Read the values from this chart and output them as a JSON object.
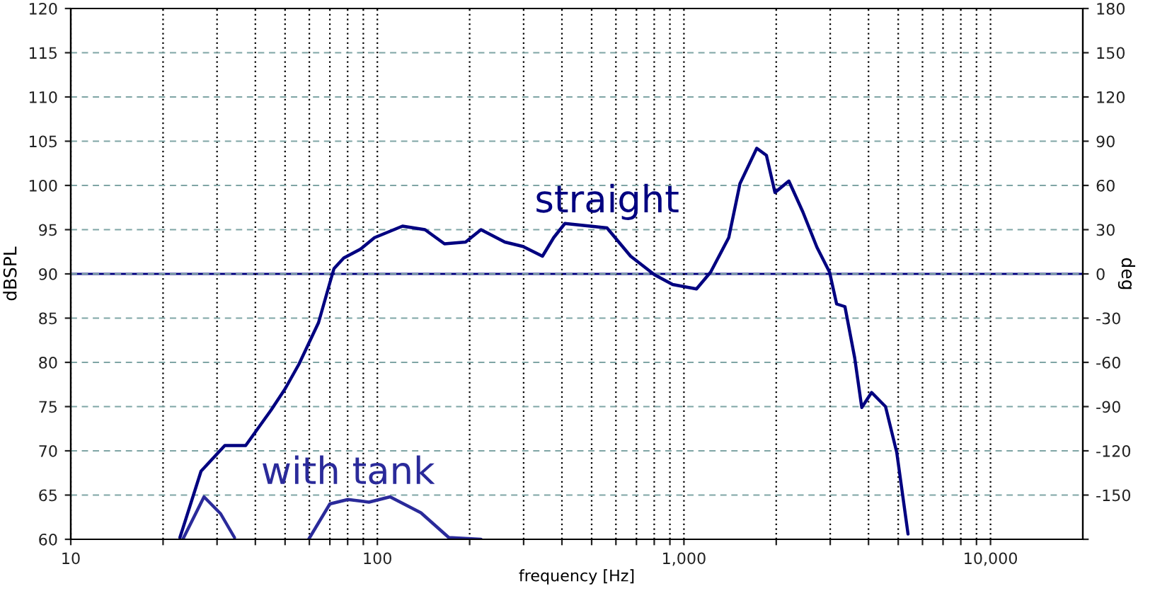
{
  "chart_data": {
    "type": "line",
    "xlabel": "frequency [Hz]",
    "ylabel": "dBSPL",
    "y2label": "deg",
    "log": "x",
    "xlim": [
      10,
      20000
    ],
    "xticks": [
      10,
      {
        "value": 20,
        "label": null
      },
      {
        "value": 30,
        "label": null
      },
      {
        "value": 40,
        "label": null
      },
      {
        "value": 50,
        "label": null
      },
      {
        "value": 60,
        "label": null
      },
      {
        "value": 70,
        "label": null
      },
      {
        "value": 80,
        "label": null
      },
      {
        "value": 90,
        "label": null
      },
      100,
      {
        "value": 200,
        "label": null
      },
      {
        "value": 300,
        "label": null
      },
      {
        "value": 400,
        "label": null
      },
      {
        "value": 500,
        "label": null
      },
      {
        "value": 600,
        "label": null
      },
      {
        "value": 700,
        "label": null
      },
      {
        "value": 800,
        "label": null
      },
      {
        "value": 900,
        "label": null
      },
      {
        "value": 1000,
        "label": "1,000"
      },
      {
        "value": 2000,
        "label": null
      },
      {
        "value": 3000,
        "label": null
      },
      {
        "value": 4000,
        "label": null
      },
      {
        "value": 5000,
        "label": null
      },
      {
        "value": 6000,
        "label": null
      },
      {
        "value": 7000,
        "label": null
      },
      {
        "value": 8000,
        "label": null
      },
      {
        "value": 9000,
        "label": null
      },
      {
        "value": 10000,
        "label": "10,000"
      }
    ],
    "ylim": [
      60,
      120
    ],
    "yticks": [
      60,
      65,
      70,
      75,
      80,
      85,
      90,
      95,
      100,
      105,
      110,
      115,
      120
    ],
    "y2lim": [
      -180,
      180
    ],
    "y2ticks": [
      {
        "value": -180,
        "label": null
      },
      -150,
      -120,
      -90,
      -60,
      -30,
      0,
      30,
      60,
      90,
      120,
      150,
      180
    ],
    "grid": true,
    "line_style": "solid",
    "marker": "none",
    "ref_lines": [
      {
        "axis": "y2",
        "value": 0,
        "color": "#000080",
        "line_style": "solid"
      }
    ],
    "series": [
      {
        "name": "straight",
        "color": "#000080",
        "x": [
          22.7,
          26.6,
          31.8,
          37.2,
          45,
          50,
          55.5,
          64.3,
          70,
          72.2,
          77.7,
          88.1,
          97.9,
          120.8,
          143,
          165.6,
          194,
          217.8,
          260.5,
          298.5,
          345.6,
          376,
          409,
          561,
          670,
          802,
          919,
          1099,
          1222,
          1400,
          1523,
          1728,
          1858,
          1981,
          2199,
          2443,
          2716,
          2985,
          3148,
          3351,
          3606,
          3802,
          4094,
          4545,
          4946,
          5382
        ],
        "values": [
          60.2,
          67.7,
          70.6,
          70.6,
          74.6,
          77,
          79.8,
          84.5,
          89,
          90.6,
          91.8,
          92.8,
          94.1,
          95.4,
          95,
          93.4,
          93.6,
          95,
          93.6,
          93.1,
          92,
          94.1,
          95.7,
          95.2,
          92,
          89.9,
          88.8,
          88.3,
          90.2,
          94.1,
          100.2,
          104.2,
          103.4,
          99.2,
          100.5,
          97,
          93,
          90.2,
          86.6,
          86.3,
          80.5,
          74.9,
          76.6,
          75,
          69.8,
          60.6
        ]
      },
      {
        "name": "with tank",
        "color": "#2a2a9a",
        "x": [
          23.2,
          27.2,
          30.8,
          34.2,
          45,
          59.7,
          70,
          80.2,
          93.9,
          110,
          138.7,
          171,
          217.8
        ],
        "values": [
          60,
          64.8,
          62.9,
          60.2,
          null,
          60,
          64,
          64.5,
          64.2,
          64.8,
          63,
          60.2,
          60
        ]
      }
    ]
  }
}
